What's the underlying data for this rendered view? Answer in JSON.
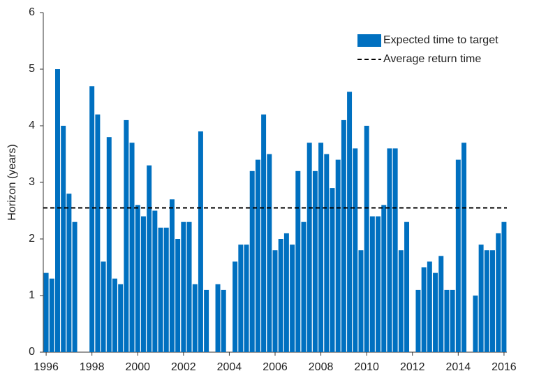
{
  "chart_data": {
    "type": "bar",
    "y_label": "Horizon (years)",
    "x": [
      1996,
      1996.25,
      1996.5,
      1996.75,
      1997,
      1997.25,
      1997.5,
      1997.75,
      1998,
      1998.25,
      1998.5,
      1998.75,
      1999,
      1999.25,
      1999.5,
      1999.75,
      2000,
      2000.25,
      2000.5,
      2000.75,
      2001,
      2001.25,
      2001.5,
      2001.75,
      2002,
      2002.25,
      2002.5,
      2002.75,
      2003,
      2003.25,
      2003.5,
      2003.75,
      2004,
      2004.25,
      2004.5,
      2004.75,
      2005,
      2005.25,
      2005.5,
      2005.75,
      2006,
      2006.25,
      2006.5,
      2006.75,
      2007,
      2007.25,
      2007.5,
      2007.75,
      2008,
      2008.25,
      2008.5,
      2008.75,
      2009,
      2009.25,
      2009.5,
      2009.75,
      2010,
      2010.25,
      2010.5,
      2010.75,
      2011,
      2011.25,
      2011.5,
      2011.75,
      2012,
      2012.25,
      2012.5,
      2012.75,
      2013,
      2013.25,
      2013.5,
      2013.75,
      2014,
      2014.25,
      2014.5,
      2014.75,
      2015,
      2015.25,
      2015.5,
      2015.75,
      2016
    ],
    "series": [
      {
        "name": "Expected time to target",
        "color": "#0070c0",
        "values": [
          1.4,
          1.3,
          5.0,
          4.0,
          2.8,
          2.3,
          null,
          null,
          4.7,
          4.2,
          1.6,
          3.8,
          1.3,
          1.2,
          4.1,
          3.7,
          2.6,
          2.4,
          3.3,
          2.5,
          2.2,
          2.2,
          2.7,
          2.0,
          2.3,
          2.3,
          1.2,
          3.9,
          1.1,
          null,
          1.2,
          1.1,
          null,
          1.6,
          1.9,
          1.9,
          3.2,
          3.4,
          4.2,
          3.5,
          1.8,
          2.0,
          2.1,
          1.9,
          3.2,
          2.3,
          3.7,
          3.2,
          3.7,
          3.5,
          2.9,
          3.4,
          4.1,
          4.6,
          3.6,
          1.8,
          4.0,
          2.4,
          2.4,
          2.6,
          3.6,
          3.6,
          1.8,
          2.3,
          null,
          1.1,
          1.5,
          1.6,
          1.4,
          1.7,
          1.1,
          1.1,
          3.4,
          3.7,
          null,
          1.0,
          1.9,
          1.8,
          1.8,
          2.1,
          2.3
        ]
      }
    ],
    "reference_line": {
      "name": "Average return time",
      "value": 2.55,
      "color": "#000000"
    },
    "xlim": [
      1995.875,
      2016.125
    ],
    "xticks": [
      1996,
      1998,
      2000,
      2002,
      2004,
      2006,
      2008,
      2010,
      2012,
      2014,
      2016
    ],
    "ylim": [
      0,
      6
    ],
    "yticks": [
      0,
      1,
      2,
      3,
      4,
      5,
      6
    ],
    "grid": false
  }
}
